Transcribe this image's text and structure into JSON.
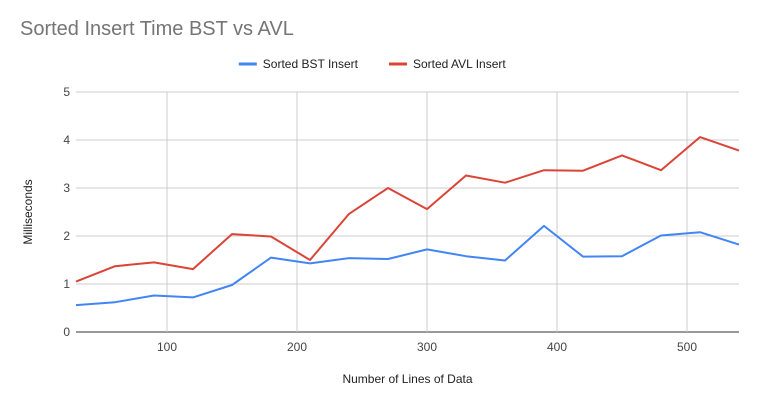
{
  "chart_data": {
    "type": "line",
    "title": "Sorted Insert Time BST vs AVL",
    "xlabel": "Number of Lines of Data",
    "ylabel": "Milliseconds",
    "xlim": [
      30,
      540
    ],
    "ylim": [
      0,
      5
    ],
    "xticks": [
      100,
      200,
      300,
      400,
      500
    ],
    "yticks": [
      0,
      1,
      2,
      3,
      4,
      5
    ],
    "grid": true,
    "legend_position": "top",
    "x": [
      30,
      60,
      90,
      120,
      150,
      180,
      210,
      240,
      270,
      300,
      330,
      360,
      390,
      420,
      450,
      480,
      510,
      540
    ],
    "series": [
      {
        "name": "Sorted BST Insert",
        "color": "#4285f4",
        "values": [
          0.56,
          0.62,
          0.76,
          0.72,
          0.98,
          1.55,
          1.43,
          1.54,
          1.52,
          1.72,
          1.58,
          1.49,
          2.21,
          1.57,
          1.58,
          2.01,
          2.08,
          1.82
        ]
      },
      {
        "name": "Sorted AVL Insert",
        "color": "#db4437",
        "values": [
          1.05,
          1.37,
          1.45,
          1.31,
          2.04,
          1.99,
          1.5,
          2.46,
          3.0,
          2.56,
          3.26,
          3.11,
          3.37,
          3.36,
          3.68,
          3.37,
          4.06,
          3.78
        ]
      }
    ]
  }
}
